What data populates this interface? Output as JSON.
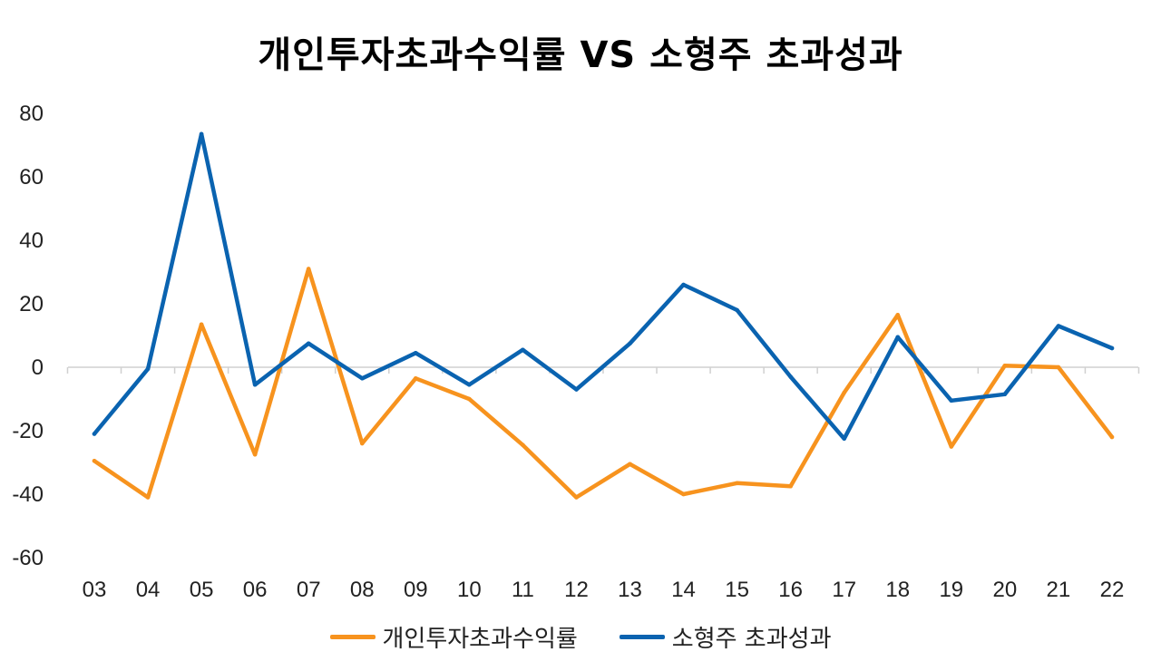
{
  "chart_data": {
    "type": "line",
    "title": "개인투자초과수익률 VS 소형주 초과성과",
    "x": [
      "03",
      "04",
      "05",
      "06",
      "07",
      "08",
      "09",
      "10",
      "11",
      "12",
      "13",
      "14",
      "15",
      "16",
      "17",
      "18",
      "19",
      "20",
      "21",
      "22"
    ],
    "ylim": [
      -60,
      80
    ],
    "yticks": [
      80,
      60,
      40,
      20,
      0,
      -20,
      -40,
      -60
    ],
    "series": [
      {
        "name": "개인투자초과수익률",
        "color": "#F7931E",
        "values": [
          -29.5,
          -41,
          13.5,
          -27.5,
          31,
          -24,
          -3.5,
          -10,
          -24.5,
          -41,
          -30.5,
          -40,
          -36.5,
          -37.5,
          -8,
          16.5,
          -25,
          0.5,
          0,
          -22
        ]
      },
      {
        "name": "소형주 초과성과",
        "color": "#0A63B0",
        "values": [
          -21,
          -0.5,
          73.5,
          -5.5,
          7.5,
          -3.5,
          4.5,
          -5.5,
          5.5,
          -7,
          7.5,
          26,
          18,
          -3,
          -22.5,
          9.5,
          -10.5,
          -8.5,
          13,
          6
        ]
      }
    ],
    "grid": false,
    "legend_position": "bottom"
  }
}
